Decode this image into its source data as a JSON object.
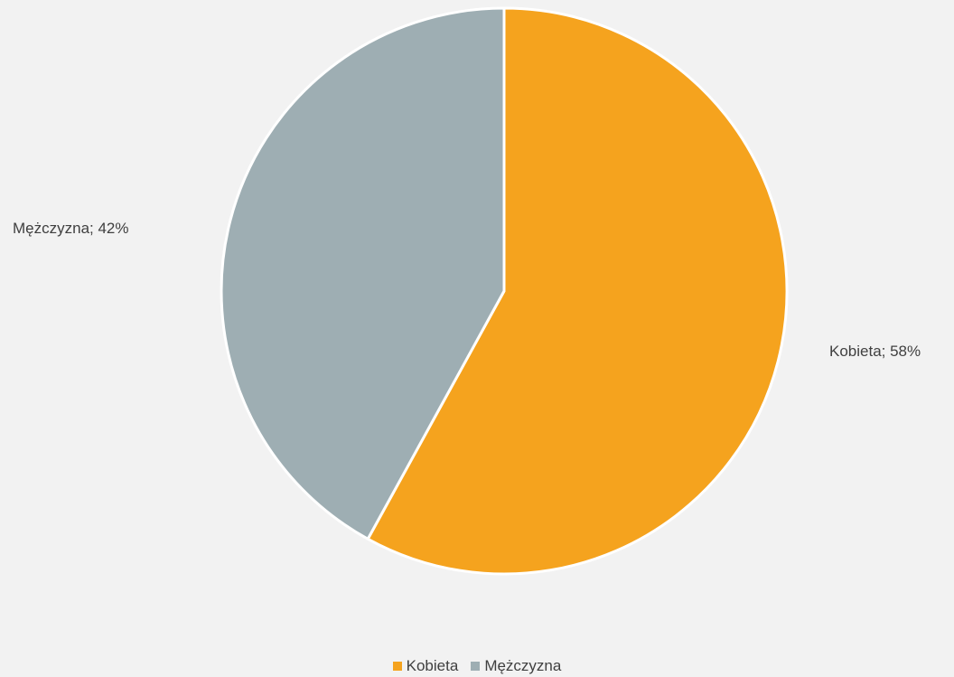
{
  "chart_data": {
    "type": "pie",
    "title": "",
    "categories": [
      "Kobieta",
      "Mężczyzna"
    ],
    "values": [
      58,
      42
    ],
    "unit": "%",
    "colors": [
      "#f5a31e",
      "#9eaeb3"
    ],
    "data_labels": [
      "Kobieta; 58%",
      "Mężczyzna; 42%"
    ],
    "start_angle_deg": 0,
    "direction": "clockwise",
    "legend_position": "bottom"
  },
  "legend": {
    "items": [
      {
        "label": "Kobieta",
        "color": "#f5a31e"
      },
      {
        "label": "Mężczyzna",
        "color": "#9eaeb3"
      }
    ]
  }
}
